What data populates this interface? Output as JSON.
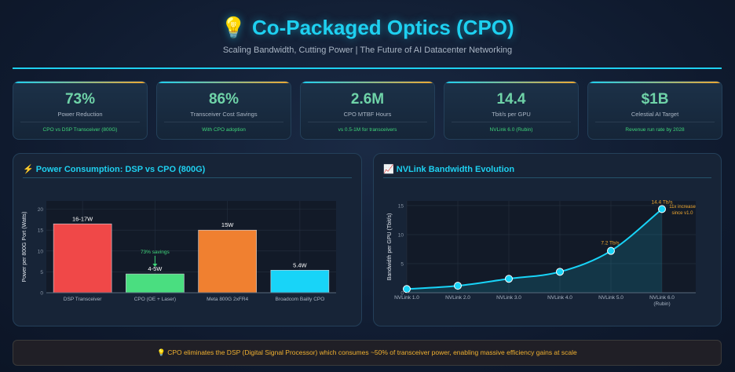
{
  "header": {
    "icon": "💡",
    "title": "Co-Packaged Optics (CPO)",
    "subtitle": "Scaling Bandwidth, Cutting Power | The Future of AI Datacenter Networking"
  },
  "cards": [
    {
      "value": "73%",
      "label": "Power Reduction",
      "sub": "CPO vs DSP Transceiver (800G)"
    },
    {
      "value": "86%",
      "label": "Transceiver Cost Savings",
      "sub": "With CPO adoption"
    },
    {
      "value": "2.6M",
      "label": "CPO MTBF Hours",
      "sub": "vs 0.5-1M for transceivers"
    },
    {
      "value": "14.4",
      "label": "Tbit/s per GPU",
      "sub": "NVLink 6.0 (Rubin)"
    },
    {
      "value": "$1B",
      "label": "Celestial AI Target",
      "sub": "Revenue run rate by 2028"
    }
  ],
  "chart_data": [
    {
      "type": "bar",
      "title": "Power Consumption: DSP vs CPO (800G)",
      "title_icon": "⚡",
      "categories": [
        "DSP Transceiver",
        "CPO (OE + Laser)",
        "Meta 800G 2xFR4",
        "Broadcom Bailly CPO"
      ],
      "values": [
        16.5,
        4.5,
        15,
        5.4
      ],
      "labels": [
        "16-17W",
        "4-5W",
        "15W",
        "5.4W"
      ],
      "colors": [
        "#f04848",
        "#4ade80",
        "#f08030",
        "#18d4f8"
      ],
      "ylabel": "Power per 800G Port (Watts)",
      "ylim": [
        0,
        22
      ],
      "yticks": [
        0,
        5,
        10,
        15,
        20
      ],
      "annotation": "73% savings",
      "grid": true
    },
    {
      "type": "line",
      "title": "NVLink Bandwidth Evolution",
      "title_icon": "📈",
      "categories": [
        "NVLink 1.0",
        "NVLink 2.0",
        "NVLink 3.0",
        "NVLink 4.0",
        "NVLink 5.0",
        "NVLink 6.0 (Rubin)"
      ],
      "values": [
        0.64,
        1.2,
        2.4,
        3.6,
        7.2,
        14.4
      ],
      "ylabel": "Bandwidth per GPU (Tbit/s)",
      "ylim": [
        0,
        15.8
      ],
      "yticks": [
        0,
        5,
        10,
        15
      ],
      "annotations": [
        "7.2 Tb/s",
        "14.4 Tb/s",
        "11x increase",
        "since v1.0"
      ],
      "color": "#18d4f8",
      "grid": true
    }
  ],
  "footer": {
    "icon": "💡",
    "text": "CPO eliminates the DSP (Digital Signal Processor) which consumes ~50% of transceiver power, enabling massive efficiency gains at scale"
  }
}
